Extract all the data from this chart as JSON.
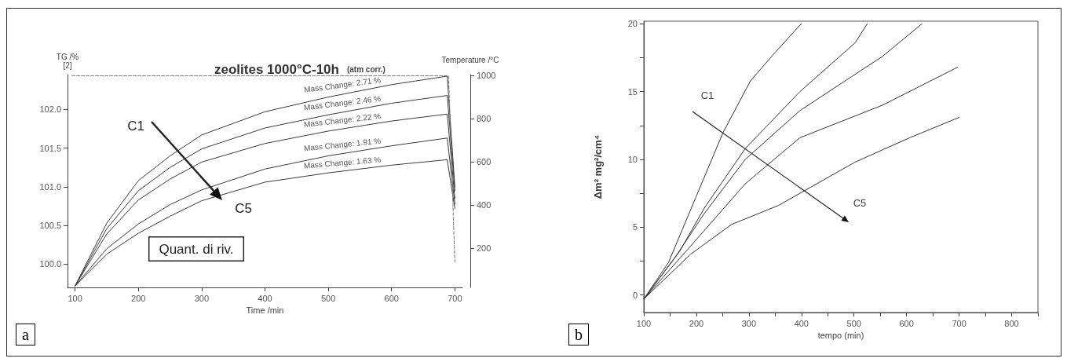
{
  "chart_data": [
    {
      "type": "line",
      "title": "zeolites 1000°C-10h",
      "subtitle": "(atm corr.)",
      "xlabel": "Time /min",
      "ylabel": "TG /%\n[2]",
      "y2label": "Temperature /°C",
      "xlim": [
        88,
        712
      ],
      "xticks": [
        100,
        200,
        300,
        400,
        500,
        600,
        700
      ],
      "ylim": [
        99.7,
        102.45
      ],
      "yticks": [
        {
          "value": 100,
          "label": "100.0"
        },
        100.5,
        {
          "value": 101,
          "label": "101.0"
        },
        101.5,
        {
          "value": 102,
          "label": "102.0"
        }
      ],
      "y2lim": [
        20,
        1005
      ],
      "y2ticks": [
        200,
        400,
        600,
        800,
        1000
      ],
      "marker": "none",
      "series": [
        {
          "color": "#3a3a3a",
          "x": [
            100,
            150,
            200,
            250,
            300,
            400,
            500,
            600,
            688,
            700
          ],
          "values": [
            99.72,
            100.53,
            101.08,
            101.4,
            101.67,
            101.97,
            102.16,
            102.32,
            102.43,
            101.0
          ]
        },
        {
          "color": "#3a3a3a",
          "x": [
            100,
            150,
            200,
            250,
            300,
            400,
            500,
            600,
            688,
            700
          ],
          "values": [
            99.72,
            100.46,
            100.95,
            101.25,
            101.49,
            101.76,
            101.93,
            102.08,
            102.18,
            100.95
          ]
        },
        {
          "color": "#3a3a3a",
          "x": [
            100,
            150,
            200,
            250,
            300,
            400,
            500,
            600,
            688,
            700
          ],
          "values": [
            99.72,
            100.39,
            100.83,
            101.1,
            101.32,
            101.56,
            101.72,
            101.85,
            101.94,
            100.85
          ]
        },
        {
          "color": "#3a3a3a",
          "x": [
            100,
            150,
            200,
            250,
            300,
            400,
            500,
            600,
            688,
            700
          ],
          "values": [
            99.72,
            100.2,
            100.52,
            100.77,
            100.96,
            101.23,
            101.4,
            101.53,
            101.63,
            100.78
          ]
        },
        {
          "color": "#3a3a3a",
          "x": [
            100,
            150,
            200,
            250,
            300,
            400,
            500,
            600,
            688,
            700
          ],
          "values": [
            99.72,
            100.13,
            100.4,
            100.62,
            100.82,
            101.06,
            101.18,
            101.28,
            101.35,
            100.72
          ]
        },
        {
          "color": "#777777",
          "axis": "y2",
          "line_style": "dashed",
          "x": [
            95,
            690,
            700
          ],
          "values": [
            1000,
            1000,
            140
          ]
        }
      ],
      "annotations": [
        "C1",
        "C5",
        "Quant. di riv.",
        "Mass Change: 2.71 %",
        "Mass Change: 2.46 %",
        "Mass Change: 2.22 %",
        "Mass Change: 1.91 %",
        "Mass Change: 1.63 %",
        "a"
      ]
    },
    {
      "type": "line",
      "xlabel": "tempo (min)",
      "ylabel": "Δm² mg²/cm⁴",
      "xlim": [
        100,
        850
      ],
      "xticks": [
        100,
        {
          "value": 150,
          "label": null
        },
        200,
        {
          "value": 250,
          "label": null
        },
        300,
        {
          "value": 350,
          "label": null
        },
        400,
        {
          "value": 450,
          "label": null
        },
        500,
        {
          "value": 550,
          "label": null
        },
        600,
        {
          "value": 650,
          "label": null
        },
        700,
        {
          "value": 750,
          "label": null
        },
        800,
        {
          "value": 850,
          "label": null
        }
      ],
      "ylim": [
        -1.3,
        20.2
      ],
      "yticks": [
        0,
        {
          "value": 2.5,
          "label": null
        },
        5,
        {
          "value": 7.5,
          "label": null
        },
        10,
        {
          "value": 12.5,
          "label": null
        },
        15,
        {
          "value": 17.5,
          "label": null
        },
        20
      ],
      "marker": "none",
      "series": [
        {
          "color": "#333333",
          "x": [
            100,
            147,
            199,
            251,
            303,
            350,
            397,
            400
          ],
          "values": [
            -0.3,
            2.4,
            7.2,
            12.0,
            15.8,
            17.9,
            19.9,
            20
          ]
        },
        {
          "color": "#333333",
          "x": [
            100,
            168,
            215,
            293,
            397,
            502,
            525
          ],
          "values": [
            -0.3,
            3.2,
            6.4,
            10.8,
            15.0,
            18.6,
            20
          ]
        },
        {
          "color": "#333333",
          "x": [
            100,
            160,
            215,
            293,
            397,
            554,
            629
          ],
          "values": [
            -0.3,
            2.8,
            6.0,
            10.0,
            13.6,
            17.6,
            20
          ]
        },
        {
          "color": "#333333",
          "x": [
            100,
            189,
            293,
            397,
            554,
            697
          ],
          "values": [
            -0.3,
            3.6,
            8.2,
            11.6,
            14.0,
            16.8
          ]
        },
        {
          "color": "#333333",
          "x": [
            100,
            189,
            267,
            356,
            502,
            606,
            700
          ],
          "values": [
            -0.3,
            3.0,
            5.2,
            6.6,
            9.8,
            11.6,
            13.1
          ]
        }
      ],
      "annotations": [
        "C1",
        "C5",
        "b"
      ]
    }
  ]
}
